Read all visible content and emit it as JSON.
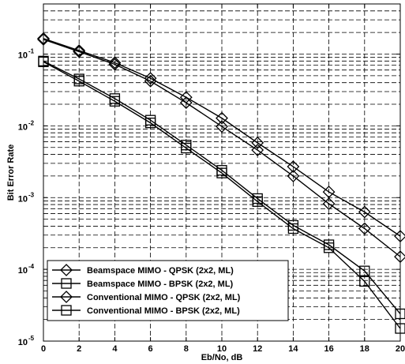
{
  "chart_data": {
    "type": "line",
    "xlabel": "Eb/No, dB",
    "ylabel": "Bit Error Rate",
    "xlim": [
      0,
      20
    ],
    "ylim": [
      1e-05,
      0.5
    ],
    "yscale": "log",
    "grid": true,
    "x_ticks": [
      0,
      2,
      4,
      6,
      8,
      10,
      12,
      14,
      16,
      18,
      20
    ],
    "y_ticks": [
      {
        "base": "10",
        "exp": "-5",
        "value": 1e-05
      },
      {
        "base": "10",
        "exp": "-4",
        "value": 0.0001
      },
      {
        "base": "10",
        "exp": "-3",
        "value": 0.001
      },
      {
        "base": "10",
        "exp": "-2",
        "value": 0.01
      },
      {
        "base": "10",
        "exp": "-1",
        "value": 0.1
      }
    ],
    "legend_position": "bottom-left",
    "series": [
      {
        "name": "Beamspace MIMO - QPSK (2x2, ML)",
        "marker": "diamond",
        "x": [
          0,
          2,
          4,
          6,
          8,
          10,
          12,
          14,
          16,
          18,
          20
        ],
        "y": [
          0.16,
          0.108,
          0.072,
          0.042,
          0.021,
          0.0098,
          0.0046,
          0.002,
          0.00082,
          0.00037,
          0.00015
        ]
      },
      {
        "name": "Beamspace MIMO - BPSK (2x2, ML)",
        "marker": "square",
        "x": [
          0,
          2,
          4,
          6,
          8,
          10,
          12,
          14,
          16,
          18,
          20
        ],
        "y": [
          0.078,
          0.042,
          0.022,
          0.011,
          0.0049,
          0.0022,
          0.00088,
          0.00037,
          0.0002,
          6.8e-05,
          1.5e-05
        ]
      },
      {
        "name": "Conventional MIMO - QPSK (2x2, ML)",
        "marker": "diamond",
        "x": [
          0,
          2,
          4,
          6,
          8,
          10,
          12,
          14,
          16,
          18,
          20
        ],
        "y": [
          0.165,
          0.112,
          0.076,
          0.046,
          0.025,
          0.0128,
          0.0058,
          0.0027,
          0.0012,
          0.00063,
          0.00029
        ]
      },
      {
        "name": "Conventional MIMO - BPSK (2x2, ML)",
        "marker": "square",
        "x": [
          0,
          2,
          4,
          6,
          8,
          10,
          12,
          14,
          16,
          18,
          20
        ],
        "y": [
          0.08,
          0.045,
          0.024,
          0.012,
          0.0054,
          0.0024,
          0.00097,
          0.00041,
          0.00022,
          9.5e-05,
          2.4e-05
        ]
      }
    ]
  }
}
